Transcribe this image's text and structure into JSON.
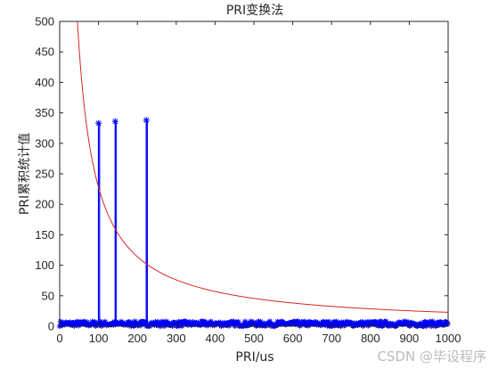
{
  "chart_data": {
    "type": "line",
    "title": "PRI变换法",
    "xlabel": "PRI/us",
    "ylabel": "PRI累积统计值",
    "xlim": [
      0,
      1000
    ],
    "ylim": [
      0,
      500
    ],
    "xticks": [
      0,
      100,
      200,
      300,
      400,
      500,
      600,
      700,
      800,
      900,
      1000
    ],
    "yticks": [
      0,
      50,
      100,
      150,
      200,
      250,
      300,
      350,
      400,
      450,
      500
    ],
    "grid": false,
    "colors": {
      "stem": "#0000ff",
      "threshold": "#d62728",
      "axes": "#262626"
    },
    "series": [
      {
        "style": "stem-star",
        "color": "#0000ff",
        "peaks": [
          {
            "x": 100,
            "y": 333
          },
          {
            "x": 143,
            "y": 336
          },
          {
            "x": 223,
            "y": 338
          }
        ],
        "noise_level": [
          0,
          8
        ]
      },
      {
        "style": "line",
        "color": "#d62728",
        "formula": "y = 22800 / x",
        "x_start": 46,
        "x_end": 1000
      }
    ]
  },
  "watermark": "CSDN @毕设程序"
}
